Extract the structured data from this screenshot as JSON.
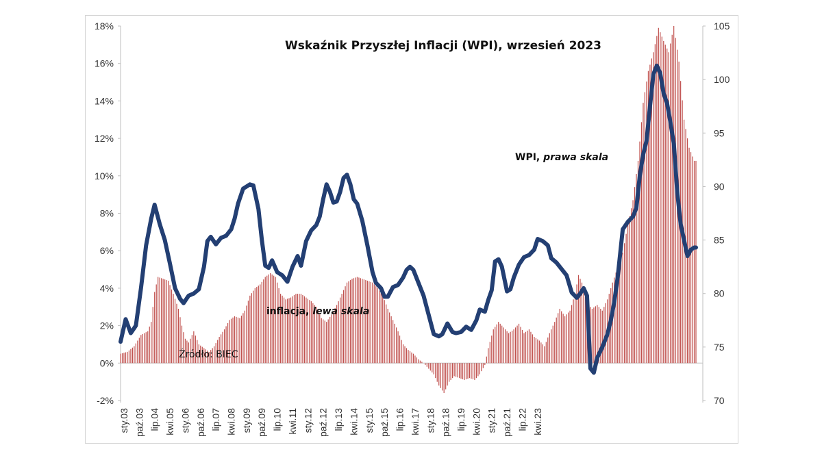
{
  "chart_data": {
    "type": "bar+line",
    "title": "Wskaźnik Przyszłej Inflacji (WPI), wrzesień 2023",
    "source": "Źródło: BIEC",
    "left_axis": {
      "ticks": [
        "-2%",
        "0%",
        "2%",
        "4%",
        "6%",
        "8%",
        "10%",
        "12%",
        "14%",
        "16%",
        "18%"
      ],
      "min": -2,
      "max": 18
    },
    "right_axis": {
      "ticks": [
        "70",
        "75",
        "80",
        "85",
        "90",
        "95",
        "100",
        "105"
      ],
      "min": 70,
      "max": 105
    },
    "x_labels": [
      "sty.03",
      "paź.03",
      "lip.04",
      "kwi.05",
      "sty.06",
      "paź.06",
      "lip.07",
      "kwi.08",
      "sty.09",
      "paź.09",
      "lip.10",
      "kwi.11",
      "sty.12",
      "paź.12",
      "lip.13",
      "kwi.14",
      "sty.15",
      "paź.15",
      "lip.16",
      "kwi.17",
      "sty.18",
      "paź.18",
      "lip.19",
      "kwi.20",
      "sty.21",
      "paź.21",
      "lip.22",
      "kwi.23"
    ],
    "series": [
      {
        "name_parts": [
          "inflacja, ",
          "lewa skala"
        ],
        "axis": "left",
        "kind": "bar",
        "color": "#c0504d",
        "anchors": [
          [
            0,
            0.5
          ],
          [
            4,
            0.6
          ],
          [
            8,
            0.9
          ],
          [
            12,
            1.5
          ],
          [
            16,
            1.7
          ],
          [
            18,
            2.2
          ],
          [
            20,
            3.8
          ],
          [
            22,
            4.6
          ],
          [
            25,
            4.5
          ],
          [
            28,
            4.4
          ],
          [
            31,
            3.7
          ],
          [
            34,
            2.9
          ],
          [
            36,
            2.0
          ],
          [
            38,
            1.3
          ],
          [
            40,
            1.1
          ],
          [
            43,
            1.7
          ],
          [
            46,
            1.0
          ],
          [
            49,
            0.8
          ],
          [
            52,
            0.6
          ],
          [
            55,
            0.9
          ],
          [
            58,
            1.4
          ],
          [
            61,
            1.8
          ],
          [
            64,
            2.3
          ],
          [
            67,
            2.5
          ],
          [
            70,
            2.4
          ],
          [
            73,
            2.8
          ],
          [
            76,
            3.6
          ],
          [
            79,
            4.0
          ],
          [
            82,
            4.2
          ],
          [
            85,
            4.6
          ],
          [
            88,
            4.8
          ],
          [
            91,
            4.6
          ],
          [
            94,
            3.7
          ],
          [
            97,
            3.4
          ],
          [
            100,
            3.5
          ],
          [
            103,
            3.7
          ],
          [
            106,
            3.7
          ],
          [
            109,
            3.5
          ],
          [
            112,
            3.3
          ],
          [
            115,
            3.0
          ],
          [
            118,
            2.4
          ],
          [
            121,
            2.2
          ],
          [
            124,
            2.6
          ],
          [
            127,
            3.1
          ],
          [
            130,
            3.7
          ],
          [
            133,
            4.3
          ],
          [
            136,
            4.5
          ],
          [
            139,
            4.6
          ],
          [
            142,
            4.5
          ],
          [
            145,
            4.4
          ],
          [
            148,
            4.3
          ],
          [
            151,
            4.0
          ],
          [
            154,
            3.6
          ],
          [
            157,
            2.9
          ],
          [
            160,
            2.3
          ],
          [
            163,
            1.7
          ],
          [
            166,
            1.0
          ],
          [
            169,
            0.7
          ],
          [
            172,
            0.5
          ],
          [
            175,
            0.2
          ],
          [
            178,
            0.0
          ],
          [
            181,
            -0.3
          ],
          [
            184,
            -0.6
          ],
          [
            187,
            -1.2
          ],
          [
            190,
            -1.6
          ],
          [
            193,
            -1.0
          ],
          [
            196,
            -0.7
          ],
          [
            199,
            -0.8
          ],
          [
            202,
            -0.9
          ],
          [
            205,
            -0.8
          ],
          [
            208,
            -0.9
          ],
          [
            211,
            -0.6
          ],
          [
            214,
            -0.1
          ],
          [
            216,
            0.8
          ],
          [
            219,
            1.8
          ],
          [
            222,
            2.2
          ],
          [
            225,
            1.9
          ],
          [
            228,
            1.6
          ],
          [
            231,
            1.8
          ],
          [
            234,
            2.1
          ],
          [
            237,
            1.6
          ],
          [
            240,
            1.8
          ],
          [
            243,
            1.4
          ],
          [
            246,
            1.2
          ],
          [
            249,
            0.9
          ],
          [
            252,
            1.6
          ],
          [
            255,
            2.2
          ],
          [
            258,
            2.9
          ],
          [
            261,
            2.5
          ],
          [
            264,
            2.8
          ],
          [
            267,
            3.7
          ],
          [
            269,
            4.7
          ],
          [
            271,
            4.3
          ],
          [
            274,
            3.2
          ],
          [
            277,
            2.9
          ],
          [
            280,
            3.1
          ],
          [
            283,
            2.8
          ],
          [
            286,
            3.4
          ],
          [
            289,
            4.3
          ],
          [
            292,
            5.1
          ],
          [
            295,
            5.9
          ],
          [
            298,
            7.4
          ],
          [
            301,
            8.7
          ],
          [
            304,
            10.8
          ],
          [
            307,
            13.9
          ],
          [
            310,
            15.6
          ],
          [
            313,
            16.6
          ],
          [
            316,
            17.9
          ],
          [
            319,
            17.2
          ],
          [
            322,
            16.6
          ],
          [
            325,
            18.0
          ],
          [
            328,
            16.1
          ],
          [
            331,
            13.0
          ],
          [
            334,
            11.5
          ],
          [
            337,
            10.8
          ]
        ]
      },
      {
        "name_parts": [
          "WPI, ",
          "prawa skala"
        ],
        "axis": "right",
        "kind": "line",
        "color": "#233f73",
        "anchors": [
          [
            0,
            75.5
          ],
          [
            3,
            77.6
          ],
          [
            6,
            76.3
          ],
          [
            9,
            77.0
          ],
          [
            12,
            80.5
          ],
          [
            15,
            84.5
          ],
          [
            18,
            87.0
          ],
          [
            20,
            88.3
          ],
          [
            23,
            86.5
          ],
          [
            26,
            85.0
          ],
          [
            29,
            82.8
          ],
          [
            32,
            80.5
          ],
          [
            35,
            79.5
          ],
          [
            37,
            79.1
          ],
          [
            40,
            79.8
          ],
          [
            43,
            80.0
          ],
          [
            46,
            80.4
          ],
          [
            49,
            82.5
          ],
          [
            51,
            84.9
          ],
          [
            53,
            85.3
          ],
          [
            56,
            84.6
          ],
          [
            59,
            85.2
          ],
          [
            62,
            85.4
          ],
          [
            65,
            86.0
          ],
          [
            67,
            87.0
          ],
          [
            69,
            88.4
          ],
          [
            72,
            89.8
          ],
          [
            74,
            90.0
          ],
          [
            76,
            90.2
          ],
          [
            78,
            90.1
          ],
          [
            81,
            87.9
          ],
          [
            83,
            85.0
          ],
          [
            85,
            82.6
          ],
          [
            87,
            82.4
          ],
          [
            89,
            83.1
          ],
          [
            92,
            82.0
          ],
          [
            95,
            81.7
          ],
          [
            98,
            81.1
          ],
          [
            101,
            82.5
          ],
          [
            104,
            83.5
          ],
          [
            106,
            82.6
          ],
          [
            109,
            84.9
          ],
          [
            112,
            85.9
          ],
          [
            115,
            86.4
          ],
          [
            117,
            87.2
          ],
          [
            119,
            88.8
          ],
          [
            121,
            90.2
          ],
          [
            123,
            89.5
          ],
          [
            125,
            88.5
          ],
          [
            127,
            88.6
          ],
          [
            129,
            89.5
          ],
          [
            131,
            90.8
          ],
          [
            133,
            91.1
          ],
          [
            135,
            90.2
          ],
          [
            137,
            88.8
          ],
          [
            139,
            88.4
          ],
          [
            142,
            86.8
          ],
          [
            145,
            84.5
          ],
          [
            148,
            82.0
          ],
          [
            150,
            81.0
          ],
          [
            153,
            80.5
          ],
          [
            155,
            79.7
          ],
          [
            157,
            79.7
          ],
          [
            160,
            80.6
          ],
          [
            163,
            80.8
          ],
          [
            166,
            81.5
          ],
          [
            168,
            82.2
          ],
          [
            170,
            82.5
          ],
          [
            172,
            82.2
          ],
          [
            175,
            81.0
          ],
          [
            178,
            79.8
          ],
          [
            181,
            78.0
          ],
          [
            184,
            76.2
          ],
          [
            187,
            76.0
          ],
          [
            189,
            76.2
          ],
          [
            192,
            77.2
          ],
          [
            195,
            76.4
          ],
          [
            197,
            76.3
          ],
          [
            200,
            76.4
          ],
          [
            203,
            76.9
          ],
          [
            206,
            76.6
          ],
          [
            209,
            77.5
          ],
          [
            211,
            78.5
          ],
          [
            214,
            78.3
          ],
          [
            216,
            79.4
          ],
          [
            218,
            80.3
          ],
          [
            220,
            83.0
          ],
          [
            222,
            83.2
          ],
          [
            224,
            82.5
          ],
          [
            227,
            80.2
          ],
          [
            229,
            80.4
          ],
          [
            231,
            81.5
          ],
          [
            234,
            82.7
          ],
          [
            237,
            83.4
          ],
          [
            240,
            83.6
          ],
          [
            243,
            84.1
          ],
          [
            245,
            85.1
          ],
          [
            248,
            84.9
          ],
          [
            251,
            84.5
          ],
          [
            253,
            83.3
          ],
          [
            256,
            82.9
          ],
          [
            259,
            82.3
          ],
          [
            262,
            81.7
          ],
          [
            265,
            80.1
          ],
          [
            268,
            79.6
          ],
          [
            270,
            80.0
          ],
          [
            272,
            80.5
          ],
          [
            274,
            79.8
          ],
          [
            276,
            73.0
          ],
          [
            278,
            72.6
          ],
          [
            280,
            74.0
          ],
          [
            283,
            75.0
          ],
          [
            286,
            76.2
          ],
          [
            288,
            77.5
          ],
          [
            290,
            79.2
          ],
          [
            292,
            81.5
          ],
          [
            295,
            86.0
          ],
          [
            298,
            86.7
          ],
          [
            301,
            87.2
          ],
          [
            303,
            88.0
          ],
          [
            305,
            91.0
          ],
          [
            307,
            93.0
          ],
          [
            309,
            94.3
          ],
          [
            311,
            97.5
          ],
          [
            313,
            100.5
          ],
          [
            315,
            101.3
          ],
          [
            317,
            100.6
          ],
          [
            319,
            98.7
          ],
          [
            321,
            97.8
          ],
          [
            323,
            96.0
          ],
          [
            325,
            94.0
          ],
          [
            327,
            89.5
          ],
          [
            329,
            86.5
          ],
          [
            331,
            85.0
          ],
          [
            333,
            83.5
          ],
          [
            335,
            84.1
          ],
          [
            337,
            84.3
          ]
        ]
      }
    ],
    "months": 339,
    "grid": false,
    "legend": "inline annotations"
  }
}
